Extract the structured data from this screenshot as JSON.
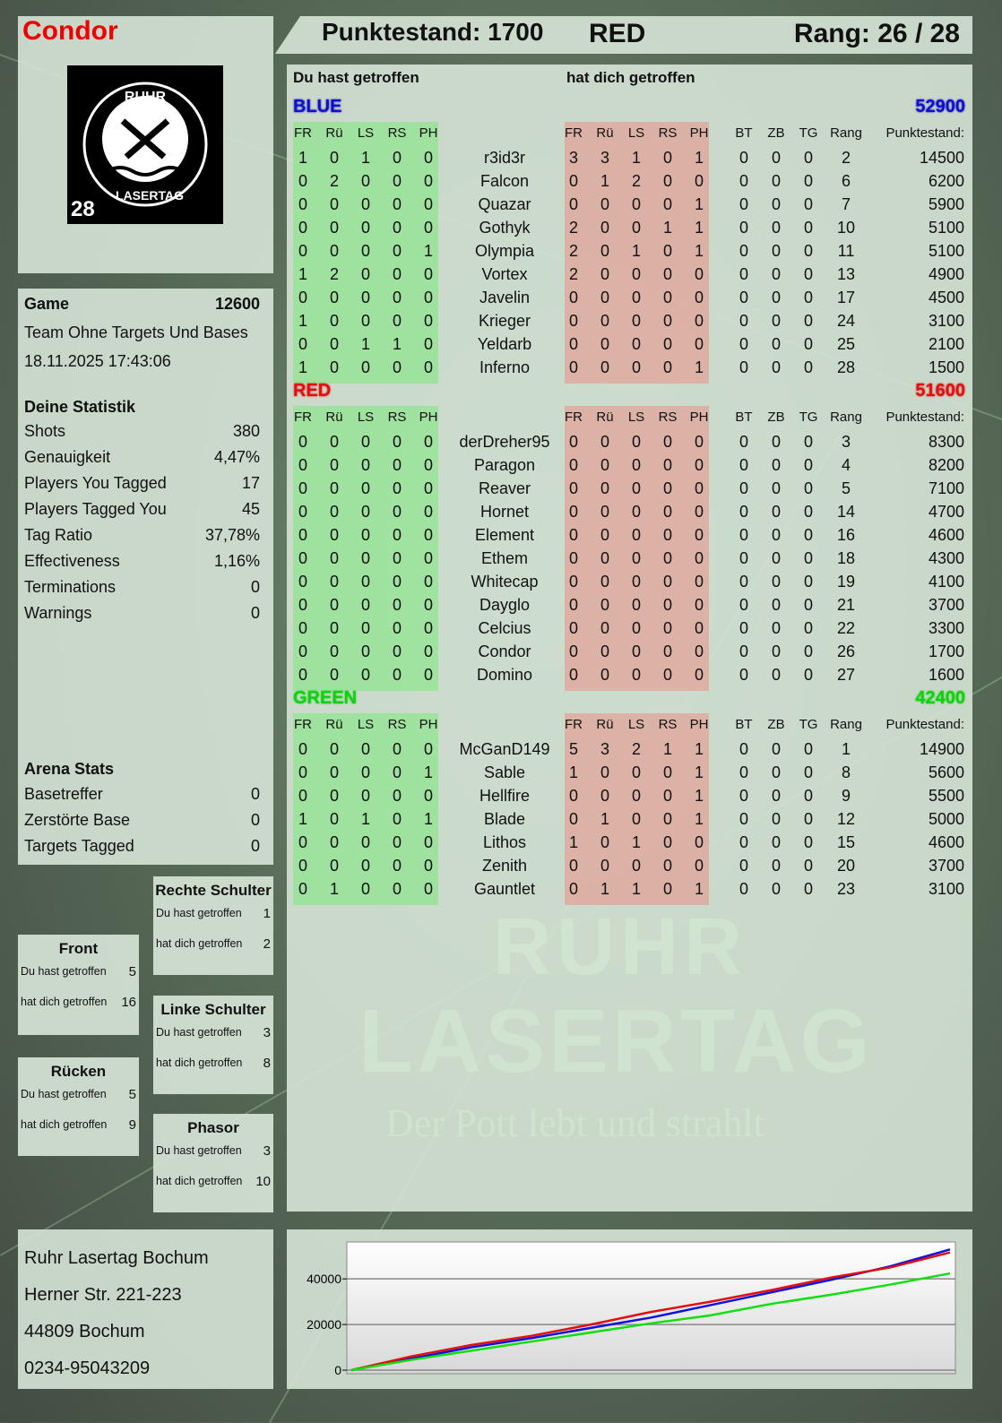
{
  "player": {
    "name": "Condor",
    "badge_number": "28",
    "logo_text": "RUHR LASERTAG"
  },
  "header": {
    "score_label": "Punktestand: 1700",
    "team": "RED",
    "rank_label": "Rang: 26 / 28"
  },
  "game": {
    "label": "Game",
    "score": "12600",
    "mode": "Team Ohne Targets Und Bases",
    "datetime": "18.11.2025 17:43:06"
  },
  "stats": {
    "title": "Deine Statistik",
    "rows": [
      {
        "label": "Shots",
        "value": "380"
      },
      {
        "label": "Genauigkeit",
        "value": "4,47%"
      },
      {
        "label": "Players You Tagged",
        "value": "17"
      },
      {
        "label": "Players Tagged You",
        "value": "45"
      },
      {
        "label": "Tag Ratio",
        "value": "37,78%"
      },
      {
        "label": "Effectiveness",
        "value": "1,16%"
      },
      {
        "label": "Terminations",
        "value": "0"
      },
      {
        "label": "Warnings",
        "value": "0"
      }
    ]
  },
  "arena": {
    "title": "Arena Stats",
    "rows": [
      {
        "label": "Basetreffer",
        "value": "0"
      },
      {
        "label": "Zerstörte Base",
        "value": "0"
      },
      {
        "label": "Targets Tagged",
        "value": "0"
      }
    ]
  },
  "hit_zones": [
    {
      "id": "rechte-schulter",
      "title": "Rechte Schulter",
      "you_hit_label": "Du hast getroffen",
      "you_hit": "1",
      "hit_you_label": "hat dich getroffen",
      "hit_you": "2"
    },
    {
      "id": "front",
      "title": "Front",
      "you_hit_label": "Du hast getroffen",
      "you_hit": "5",
      "hit_you_label": "hat dich getroffen",
      "hit_you": "16"
    },
    {
      "id": "linke-schulter",
      "title": "Linke Schulter",
      "you_hit_label": "Du hast getroffen",
      "you_hit": "3",
      "hit_you_label": "hat dich getroffen",
      "hit_you": "8"
    },
    {
      "id": "ruecken",
      "title": "Rücken",
      "you_hit_label": "Du hast getroffen",
      "you_hit": "5",
      "hit_you_label": "hat dich getroffen",
      "hit_you": "9"
    },
    {
      "id": "phasor",
      "title": "Phasor",
      "you_hit_label": "Du hast getroffen",
      "you_hit": "3",
      "hit_you_label": "hat dich getroffen",
      "hit_you": "10"
    }
  ],
  "table": {
    "you_hit_title": "Du hast getroffen",
    "hit_you_title": "hat dich getroffen",
    "hit_cols": [
      "FR",
      "Rü",
      "LS",
      "RS",
      "PH"
    ],
    "extra_cols": [
      "BT",
      "ZB",
      "TG",
      "Rang",
      "Punktestand:"
    ],
    "teams": [
      {
        "name": "BLUE",
        "color": "#1010c8",
        "score": "52900",
        "players": [
          {
            "name": "r3id3r",
            "you_hit": [
              1,
              0,
              1,
              0,
              0
            ],
            "hit_you": [
              3,
              3,
              1,
              0,
              1
            ],
            "bt": 0,
            "zb": 0,
            "tg": 0,
            "rank": 2,
            "score": 14500
          },
          {
            "name": "Falcon",
            "you_hit": [
              0,
              2,
              0,
              0,
              0
            ],
            "hit_you": [
              0,
              1,
              2,
              0,
              0
            ],
            "bt": 0,
            "zb": 0,
            "tg": 0,
            "rank": 6,
            "score": 6200
          },
          {
            "name": "Quazar",
            "you_hit": [
              0,
              0,
              0,
              0,
              0
            ],
            "hit_you": [
              0,
              0,
              0,
              0,
              1
            ],
            "bt": 0,
            "zb": 0,
            "tg": 0,
            "rank": 7,
            "score": 5900
          },
          {
            "name": "Gothyk",
            "you_hit": [
              0,
              0,
              0,
              0,
              0
            ],
            "hit_you": [
              2,
              0,
              0,
              1,
              1
            ],
            "bt": 0,
            "zb": 0,
            "tg": 0,
            "rank": 10,
            "score": 5100
          },
          {
            "name": "Olympia",
            "you_hit": [
              0,
              0,
              0,
              0,
              1
            ],
            "hit_you": [
              2,
              0,
              1,
              0,
              1
            ],
            "bt": 0,
            "zb": 0,
            "tg": 0,
            "rank": 11,
            "score": 5100
          },
          {
            "name": "Vortex",
            "you_hit": [
              1,
              2,
              0,
              0,
              0
            ],
            "hit_you": [
              2,
              0,
              0,
              0,
              0
            ],
            "bt": 0,
            "zb": 0,
            "tg": 0,
            "rank": 13,
            "score": 4900
          },
          {
            "name": "Javelin",
            "you_hit": [
              0,
              0,
              0,
              0,
              0
            ],
            "hit_you": [
              0,
              0,
              0,
              0,
              0
            ],
            "bt": 0,
            "zb": 0,
            "tg": 0,
            "rank": 17,
            "score": 4500
          },
          {
            "name": "Krieger",
            "you_hit": [
              1,
              0,
              0,
              0,
              0
            ],
            "hit_you": [
              0,
              0,
              0,
              0,
              0
            ],
            "bt": 0,
            "zb": 0,
            "tg": 0,
            "rank": 24,
            "score": 3100
          },
          {
            "name": "Yeldarb",
            "you_hit": [
              0,
              0,
              1,
              1,
              0
            ],
            "hit_you": [
              0,
              0,
              0,
              0,
              0
            ],
            "bt": 0,
            "zb": 0,
            "tg": 0,
            "rank": 25,
            "score": 2100
          },
          {
            "name": "Inferno",
            "you_hit": [
              1,
              0,
              0,
              0,
              0
            ],
            "hit_you": [
              0,
              0,
              0,
              0,
              1
            ],
            "bt": 0,
            "zb": 0,
            "tg": 0,
            "rank": 28,
            "score": 1500
          }
        ]
      },
      {
        "name": "RED",
        "color": "#e01010",
        "score": "51600",
        "players": [
          {
            "name": "derDreher95",
            "you_hit": [
              0,
              0,
              0,
              0,
              0
            ],
            "hit_you": [
              0,
              0,
              0,
              0,
              0
            ],
            "bt": 0,
            "zb": 0,
            "tg": 0,
            "rank": 3,
            "score": 8300
          },
          {
            "name": "Paragon",
            "you_hit": [
              0,
              0,
              0,
              0,
              0
            ],
            "hit_you": [
              0,
              0,
              0,
              0,
              0
            ],
            "bt": 0,
            "zb": 0,
            "tg": 0,
            "rank": 4,
            "score": 8200
          },
          {
            "name": "Reaver",
            "you_hit": [
              0,
              0,
              0,
              0,
              0
            ],
            "hit_you": [
              0,
              0,
              0,
              0,
              0
            ],
            "bt": 0,
            "zb": 0,
            "tg": 0,
            "rank": 5,
            "score": 7100
          },
          {
            "name": "Hornet",
            "you_hit": [
              0,
              0,
              0,
              0,
              0
            ],
            "hit_you": [
              0,
              0,
              0,
              0,
              0
            ],
            "bt": 0,
            "zb": 0,
            "tg": 0,
            "rank": 14,
            "score": 4700
          },
          {
            "name": "Element",
            "you_hit": [
              0,
              0,
              0,
              0,
              0
            ],
            "hit_you": [
              0,
              0,
              0,
              0,
              0
            ],
            "bt": 0,
            "zb": 0,
            "tg": 0,
            "rank": 16,
            "score": 4600
          },
          {
            "name": "Ethem",
            "you_hit": [
              0,
              0,
              0,
              0,
              0
            ],
            "hit_you": [
              0,
              0,
              0,
              0,
              0
            ],
            "bt": 0,
            "zb": 0,
            "tg": 0,
            "rank": 18,
            "score": 4300
          },
          {
            "name": "Whitecap",
            "you_hit": [
              0,
              0,
              0,
              0,
              0
            ],
            "hit_you": [
              0,
              0,
              0,
              0,
              0
            ],
            "bt": 0,
            "zb": 0,
            "tg": 0,
            "rank": 19,
            "score": 4100
          },
          {
            "name": "Dayglo",
            "you_hit": [
              0,
              0,
              0,
              0,
              0
            ],
            "hit_you": [
              0,
              0,
              0,
              0,
              0
            ],
            "bt": 0,
            "zb": 0,
            "tg": 0,
            "rank": 21,
            "score": 3700
          },
          {
            "name": "Celcius",
            "you_hit": [
              0,
              0,
              0,
              0,
              0
            ],
            "hit_you": [
              0,
              0,
              0,
              0,
              0
            ],
            "bt": 0,
            "zb": 0,
            "tg": 0,
            "rank": 22,
            "score": 3300
          },
          {
            "name": "Condor",
            "you_hit": [
              0,
              0,
              0,
              0,
              0
            ],
            "hit_you": [
              0,
              0,
              0,
              0,
              0
            ],
            "bt": 0,
            "zb": 0,
            "tg": 0,
            "rank": 26,
            "score": 1700
          },
          {
            "name": "Domino",
            "you_hit": [
              0,
              0,
              0,
              0,
              0
            ],
            "hit_you": [
              0,
              0,
              0,
              0,
              0
            ],
            "bt": 0,
            "zb": 0,
            "tg": 0,
            "rank": 27,
            "score": 1600
          }
        ]
      },
      {
        "name": "GREEN",
        "color": "#10d010",
        "score": "42400",
        "players": [
          {
            "name": "McGanD149",
            "you_hit": [
              0,
              0,
              0,
              0,
              0
            ],
            "hit_you": [
              5,
              3,
              2,
              1,
              1
            ],
            "bt": 0,
            "zb": 0,
            "tg": 0,
            "rank": 1,
            "score": 14900
          },
          {
            "name": "Sable",
            "you_hit": [
              0,
              0,
              0,
              0,
              1
            ],
            "hit_you": [
              1,
              0,
              0,
              0,
              1
            ],
            "bt": 0,
            "zb": 0,
            "tg": 0,
            "rank": 8,
            "score": 5600
          },
          {
            "name": "Hellfire",
            "you_hit": [
              0,
              0,
              0,
              0,
              0
            ],
            "hit_you": [
              0,
              0,
              0,
              0,
              1
            ],
            "bt": 0,
            "zb": 0,
            "tg": 0,
            "rank": 9,
            "score": 5500
          },
          {
            "name": "Blade",
            "you_hit": [
              1,
              0,
              1,
              0,
              1
            ],
            "hit_you": [
              0,
              1,
              0,
              0,
              1
            ],
            "bt": 0,
            "zb": 0,
            "tg": 0,
            "rank": 12,
            "score": 5000
          },
          {
            "name": "Lithos",
            "you_hit": [
              0,
              0,
              0,
              0,
              0
            ],
            "hit_you": [
              1,
              0,
              1,
              0,
              0
            ],
            "bt": 0,
            "zb": 0,
            "tg": 0,
            "rank": 15,
            "score": 4600
          },
          {
            "name": "Zenith",
            "you_hit": [
              0,
              0,
              0,
              0,
              0
            ],
            "hit_you": [
              0,
              0,
              0,
              0,
              0
            ],
            "bt": 0,
            "zb": 0,
            "tg": 0,
            "rank": 20,
            "score": 3700
          },
          {
            "name": "Gauntlet",
            "you_hit": [
              0,
              1,
              0,
              0,
              0
            ],
            "hit_you": [
              0,
              1,
              1,
              0,
              1
            ],
            "bt": 0,
            "zb": 0,
            "tg": 0,
            "rank": 23,
            "score": 3100
          }
        ]
      }
    ]
  },
  "watermark": {
    "line1": "RUHR",
    "line2": "LASERTAG",
    "slogan": "Der Pott lebt und strahlt"
  },
  "address": {
    "lines": [
      "Ruhr Lasertag Bochum",
      "Herner Str. 221-223",
      "44809 Bochum",
      "0234-95043209"
    ]
  },
  "chart_data": {
    "type": "line",
    "title": "",
    "xlabel": "",
    "ylabel": "",
    "ylim": [
      0,
      55000
    ],
    "yticks": [
      "0",
      "20000",
      "40000"
    ],
    "grid": "horizontal",
    "x": [
      0,
      1,
      2,
      3,
      4,
      5,
      6,
      7,
      8,
      9,
      10
    ],
    "series": [
      {
        "color": "#1010e0",
        "values": [
          0,
          5000,
          10000,
          14000,
          18500,
          23000,
          28500,
          34000,
          39500,
          45500,
          52900
        ]
      },
      {
        "color": "#e01010",
        "values": [
          0,
          6000,
          11000,
          15000,
          20000,
          25500,
          30000,
          35000,
          40500,
          45000,
          51600
        ]
      },
      {
        "color": "#10e010",
        "values": [
          0,
          4500,
          8500,
          12500,
          16500,
          20500,
          24000,
          29000,
          33000,
          37500,
          42400
        ]
      }
    ]
  }
}
